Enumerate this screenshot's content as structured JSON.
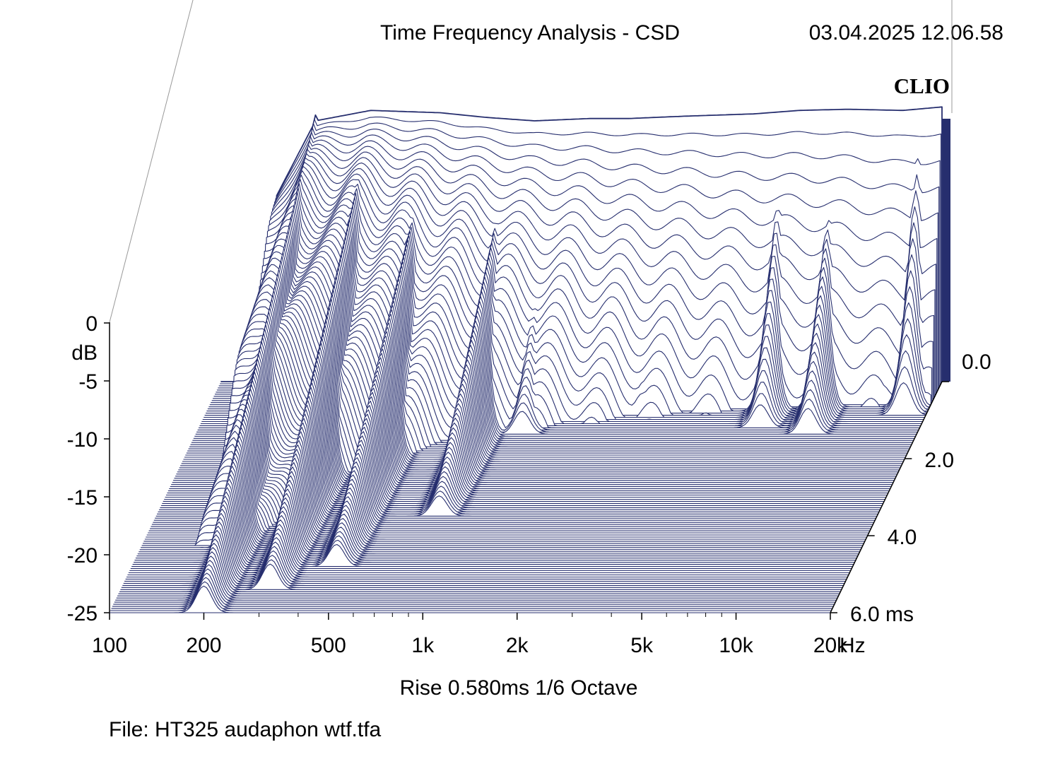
{
  "header": {
    "title": "Time Frequency Analysis - CSD",
    "timestamp": "03.04.2025 12.06.58",
    "brand": "CLIO"
  },
  "footer": {
    "settings": "Rise 0.580ms   1/6 Octave",
    "file": "File: HT325 audaphon wtf.tfa"
  },
  "colors": {
    "trace": "#262e6e",
    "background": "#ffffff",
    "text": "#000000"
  },
  "chart_data": {
    "type": "waterfall",
    "title": "Time Frequency Analysis - CSD",
    "x_axis": {
      "unit": "Hz",
      "scale": "log",
      "range": [
        100,
        20000
      ],
      "tick_values": [
        100,
        200,
        500,
        1000,
        2000,
        5000,
        10000,
        20000
      ],
      "tick_labels": [
        "100",
        "200",
        "500",
        "1k",
        "2k",
        "5k",
        "10k",
        "20k"
      ]
    },
    "y_axis": {
      "unit": "dB",
      "range": [
        -25,
        0
      ],
      "tick_values": [
        0,
        -5,
        -10,
        -15,
        -20,
        -25
      ],
      "tick_labels": [
        "0",
        "-5",
        "-10",
        "-15",
        "-20",
        "-25"
      ]
    },
    "z_axis": {
      "unit": "ms",
      "range": [
        0,
        6
      ],
      "tick_values": [
        0,
        2,
        4,
        6
      ],
      "tick_labels": [
        "0.0",
        "2.0",
        "4.0",
        "6.0"
      ]
    },
    "rise_time_ms": 0.58,
    "smoothing": "1/6 Octave",
    "initial_response": {
      "freq_hz": [
        120,
        150,
        200,
        300,
        500,
        700,
        1000,
        1500,
        2000,
        3000,
        5000,
        7000,
        10000,
        15000,
        20000
      ],
      "db": [
        -25,
        -9,
        -2.5,
        -1.6,
        -1.8,
        -2.2,
        -2.5,
        -2.3,
        -2.3,
        -2.1,
        -1.9,
        -1.6,
        -1.5,
        -1.6,
        -1.3
      ]
    },
    "decay_features": [
      {
        "freq_hz": 200,
        "db_start": -2,
        "duration_ms": 6.0
      },
      {
        "freq_hz": 300,
        "db_start": -3,
        "duration_ms": 5.4
      },
      {
        "freq_hz": 450,
        "db_start": -6,
        "duration_ms": 4.8
      },
      {
        "freq_hz": 800,
        "db_start": -8,
        "duration_ms": 3.5
      },
      {
        "freq_hz": 1100,
        "db_start": -9,
        "duration_ms": 1.4
      },
      {
        "freq_hz": 2500,
        "db_start": -10,
        "duration_ms": 0.9
      },
      {
        "freq_hz": 6200,
        "db_start": -5,
        "duration_ms": 1.2
      },
      {
        "freq_hz": 9000,
        "db_start": -7,
        "duration_ms": 1.4
      },
      {
        "freq_hz": 14000,
        "db_start": -8,
        "duration_ms": 0.6
      },
      {
        "freq_hz": 17000,
        "db_start": -3,
        "duration_ms": 0.9
      }
    ]
  }
}
